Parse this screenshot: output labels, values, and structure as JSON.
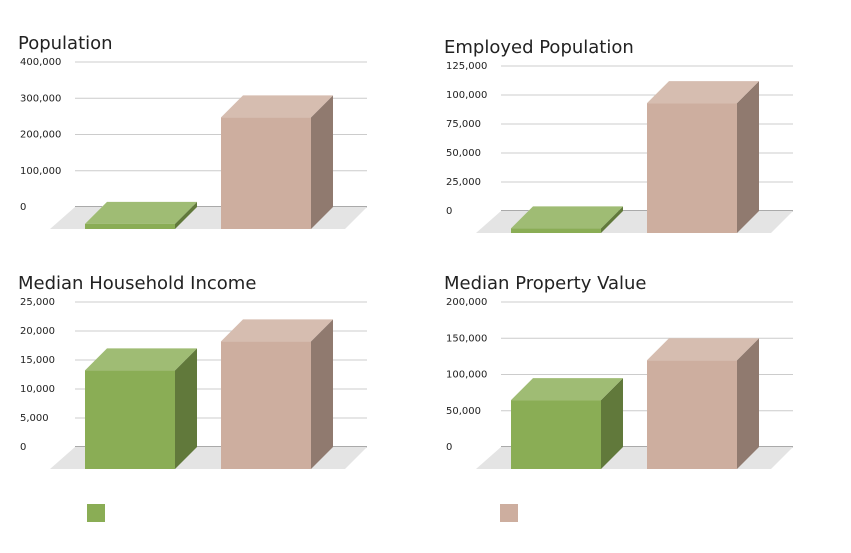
{
  "chart_data": [
    {
      "type": "bar",
      "title": "Population",
      "categories": [
        null,
        null
      ],
      "values": [
        14000,
        308000
      ],
      "colors": [
        "#8aad55",
        "#cdae9f"
      ],
      "ylim": [
        0,
        400000
      ],
      "yticks": [
        0,
        {
          "value": 100000,
          "label": "100,000"
        },
        {
          "value": 200000,
          "label": "200,000"
        },
        {
          "value": 300000,
          "label": "300,000"
        },
        {
          "value": 400000,
          "label": "400,000"
        }
      ],
      "grid": true
    },
    {
      "type": "bar",
      "title": "Employed Population",
      "categories": [
        null,
        null
      ],
      "values": [
        4000,
        112000
      ],
      "colors": [
        "#8aad55",
        "#cdae9f"
      ],
      "ylim": [
        0,
        125000
      ],
      "yticks": [
        0,
        {
          "value": 25000,
          "label": "25,000"
        },
        {
          "value": 50000,
          "label": "50,000"
        },
        {
          "value": 75000,
          "label": "75,000"
        },
        {
          "value": 100000,
          "label": "100,000"
        },
        {
          "value": 125000,
          "label": "125,000"
        }
      ],
      "grid": true
    },
    {
      "type": "bar",
      "title": "Median Household Income",
      "categories": [
        null,
        null
      ],
      "values": [
        17000,
        22000
      ],
      "colors": [
        "#8aad55",
        "#cdae9f"
      ],
      "ylim": [
        0,
        25000
      ],
      "yticks": [
        0,
        {
          "value": 5000,
          "label": "5,000"
        },
        {
          "value": 10000,
          "label": "10,000"
        },
        {
          "value": 15000,
          "label": "15,000"
        },
        {
          "value": 20000,
          "label": "20,000"
        },
        {
          "value": 25000,
          "label": "25,000"
        }
      ],
      "grid": true
    },
    {
      "type": "bar",
      "title": "Median Property Value",
      "categories": [
        null,
        null
      ],
      "values": [
        95000,
        150000
      ],
      "colors": [
        "#8aad55",
        "#cdae9f"
      ],
      "ylim": [
        0,
        200000
      ],
      "yticks": [
        0,
        {
          "value": 50000,
          "label": "50,000"
        },
        {
          "value": 100000,
          "label": "100,000"
        },
        {
          "value": 150000,
          "label": "150,000"
        },
        {
          "value": 200000,
          "label": "200,000"
        }
      ],
      "grid": true
    }
  ]
}
